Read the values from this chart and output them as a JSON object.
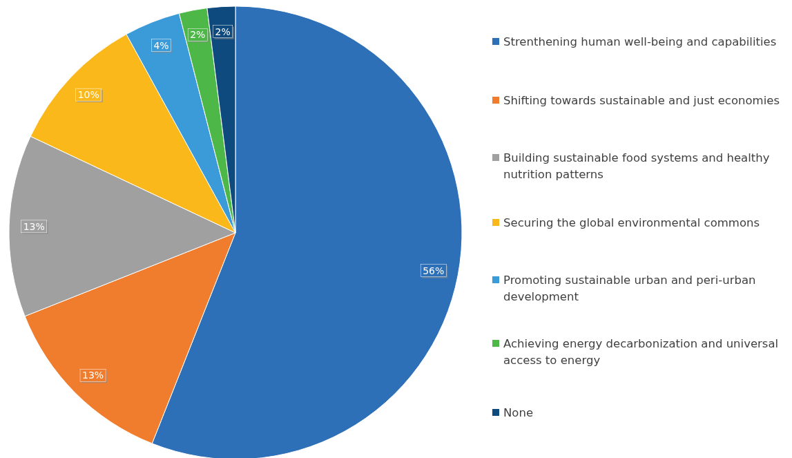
{
  "chart_data": {
    "type": "pie",
    "categories": [
      "Strenthening human well-being and capabilities",
      "Shifting towards sustainable and just economies",
      "Building sustainable food systems and healthy nutrition patterns",
      "Securing the global environmental commons",
      "Promoting sustainable urban and peri-urban development",
      "Achieving energy decarbonization and universal access to energy",
      "None"
    ],
    "values": [
      56,
      13,
      13,
      10,
      4,
      2,
      2
    ],
    "colors": [
      "#2e70b8",
      "#f07d2e",
      "#a0a0a0",
      "#fbb81a",
      "#3b9ad8",
      "#4db848",
      "#0f4a7e"
    ],
    "value_labels": [
      "56%",
      "13%",
      "13%",
      "10%",
      "4%",
      "2%",
      "2%"
    ],
    "legend": "right"
  }
}
